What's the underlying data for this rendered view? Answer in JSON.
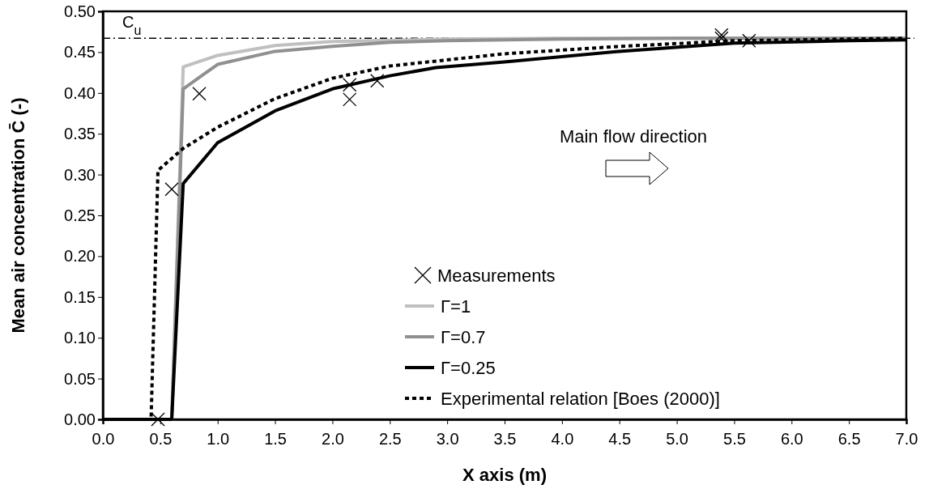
{
  "chart_data": {
    "type": "line",
    "xlabel": "X axis (m)",
    "ylabel": "Mean air concentration C̄ (-)",
    "xlim": [
      0,
      7
    ],
    "ylim": [
      0,
      0.5
    ],
    "xticks": [
      {
        "value": 0,
        "label": "0.0"
      },
      0.5,
      {
        "value": 1,
        "label": "1.0"
      },
      1.5,
      {
        "value": 2,
        "label": "2.0"
      },
      2.5,
      {
        "value": 3,
        "label": "3.0"
      },
      3.5,
      {
        "value": 4,
        "label": "4.0"
      },
      4.5,
      {
        "value": 5,
        "label": "5.0"
      },
      5.5,
      {
        "value": 6,
        "label": "6.0"
      },
      6.5,
      {
        "value": 7,
        "label": "7.0"
      }
    ],
    "yticks": [
      {
        "value": 0,
        "label": "0.00"
      },
      {
        "value": 0.05,
        "label": "0.05"
      },
      {
        "value": 0.1,
        "label": "0.10"
      },
      {
        "value": 0.15,
        "label": "0.15"
      },
      {
        "value": 0.2,
        "label": "0.20"
      },
      {
        "value": 0.25,
        "label": "0.25"
      },
      {
        "value": 0.3,
        "label": "0.30"
      },
      {
        "value": 0.35,
        "label": "0.35"
      },
      {
        "value": 0.4,
        "label": "0.40"
      },
      {
        "value": 0.45,
        "label": "0.45"
      },
      {
        "value": 0.5,
        "label": "0.50"
      }
    ],
    "grid": false,
    "legend": "bottom",
    "ref_lines": [
      {
        "axis": "y",
        "value": 0.467,
        "label": "C$_{u}$",
        "color": "#000000",
        "line_style": "dashed"
      }
    ],
    "annotations": [
      "Main flow direction"
    ],
    "series": [
      {
        "name": "Measurements",
        "type": "scatter",
        "marker": "cross",
        "color": "#000000",
        "x": [
          0.48,
          0.6,
          0.84,
          2.15,
          2.15,
          2.39,
          5.39,
          5.39,
          5.63
        ],
        "values": [
          0,
          0.282,
          0.399,
          0.41,
          0.392,
          0.415,
          0.471,
          0.467,
          0.464
        ]
      },
      {
        "name": "Γ=1",
        "marker": "none",
        "line_style": "solid",
        "color": "#c0c0c0",
        "x": [
          0,
          0.6,
          0.7,
          1.0,
          1.5,
          2.0,
          3.0,
          4.0,
          7.0
        ],
        "values": [
          0,
          0,
          0.432,
          0.446,
          0.458,
          0.463,
          0.466,
          0.467,
          0.467
        ]
      },
      {
        "name": "Γ=0.7",
        "marker": "none",
        "line_style": "solid",
        "color": "#909090",
        "x": [
          0,
          0.6,
          0.7,
          1.0,
          1.5,
          2.0,
          2.5,
          3.0,
          4.0,
          5.0,
          7.0
        ],
        "values": [
          0,
          0,
          0.405,
          0.435,
          0.451,
          0.457,
          0.462,
          0.464,
          0.466,
          0.467,
          0.467
        ]
      },
      {
        "name": "Γ=0.25",
        "marker": "none",
        "line_style": "solid",
        "color": "#000000",
        "x": [
          0,
          0.6,
          0.7,
          1.0,
          1.5,
          2.0,
          2.5,
          2.9,
          3.5,
          4.5,
          5.5,
          6.5,
          7.0
        ],
        "values": [
          0,
          0,
          0.289,
          0.339,
          0.378,
          0.405,
          0.421,
          0.431,
          0.438,
          0.451,
          0.461,
          0.464,
          0.465
        ]
      },
      {
        "name": "Experimental relation [Boes (2000)]",
        "marker": "none",
        "line_style": "dashed",
        "color": "#000000",
        "x": [
          0,
          0.42,
          0.48,
          0.7,
          1.0,
          1.5,
          2.0,
          2.5,
          3.5,
          4.5,
          5.5,
          7.0
        ],
        "values": [
          0,
          0,
          0.305,
          0.332,
          0.358,
          0.393,
          0.418,
          0.433,
          0.448,
          0.457,
          0.464,
          0.467
        ]
      }
    ]
  }
}
